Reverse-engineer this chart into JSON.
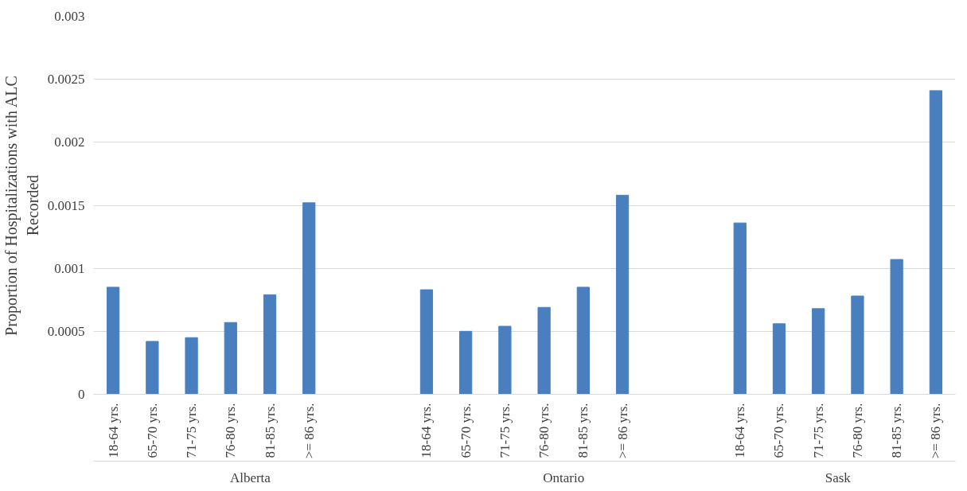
{
  "chart_data": {
    "type": "bar",
    "ylabel": "Proportion of Hospitalizations with ALC Recorded",
    "categories": [
      "18-64 yrs.",
      "65-70 yrs.",
      "71-75 yrs.",
      "76-80 yrs.",
      "81-85 yrs.",
      ">= 86 yrs.",
      null,
      null,
      "18-64 yrs.",
      "65-70 yrs.",
      "71-75 yrs.",
      "76-80 yrs.",
      "81-85 yrs.",
      ">= 86 yrs.",
      null,
      null,
      "18-64 yrs.",
      "65-70 yrs.",
      "71-75 yrs.",
      "76-80 yrs.",
      "81-85 yrs.",
      ">= 86 yrs."
    ],
    "values": [
      0.00085,
      0.00042,
      0.00045,
      0.00057,
      0.00079,
      0.00152,
      null,
      null,
      0.00083,
      0.0005,
      0.00054,
      0.00069,
      0.00085,
      0.00158,
      null,
      null,
      0.00136,
      0.00056,
      0.00068,
      0.00078,
      0.00107,
      0.00241
    ],
    "color": "#4a7fbf",
    "ylim": [
      0,
      0.003
    ],
    "yticks": [
      0,
      0.0005,
      0.001,
      0.0015,
      0.002,
      0.0025,
      0.003
    ],
    "grid": "y",
    "annotations": [
      "Alberta",
      "Ontario",
      "Sask"
    ]
  }
}
